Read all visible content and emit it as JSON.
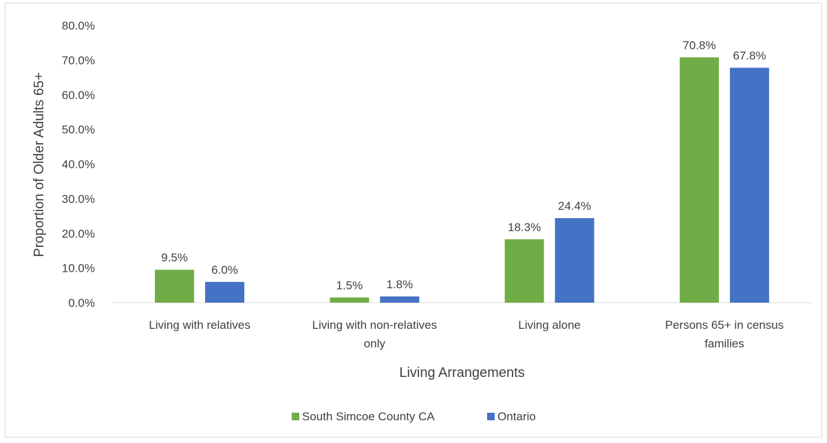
{
  "chart_data": {
    "type": "bar",
    "title": "",
    "xlabel": "Living Arrangements",
    "ylabel": "Proportion of Older Adults 65+",
    "ylim": [
      0,
      80
    ],
    "yticks": [
      "0.0%",
      "10.0%",
      "20.0%",
      "30.0%",
      "40.0%",
      "50.0%",
      "60.0%",
      "70.0%",
      "80.0%"
    ],
    "categories": [
      [
        "Living with relatives"
      ],
      [
        "Living with non-relatives",
        "only"
      ],
      [
        "Living alone"
      ],
      [
        "Persons 65+ in census",
        "families"
      ]
    ],
    "series": [
      {
        "name": "South Simcoe County CA",
        "values": [
          9.5,
          1.5,
          18.3,
          70.8
        ],
        "labels": [
          "9.5%",
          "1.5%",
          "18.3%",
          "70.8%"
        ],
        "color": "#70ad47"
      },
      {
        "name": "Ontario",
        "values": [
          6.0,
          1.8,
          24.4,
          67.8
        ],
        "labels": [
          "6.0%",
          "1.8%",
          "24.4%",
          "67.8%"
        ],
        "color": "#4472c4"
      }
    ],
    "grid": false,
    "legend_position": "bottom"
  }
}
